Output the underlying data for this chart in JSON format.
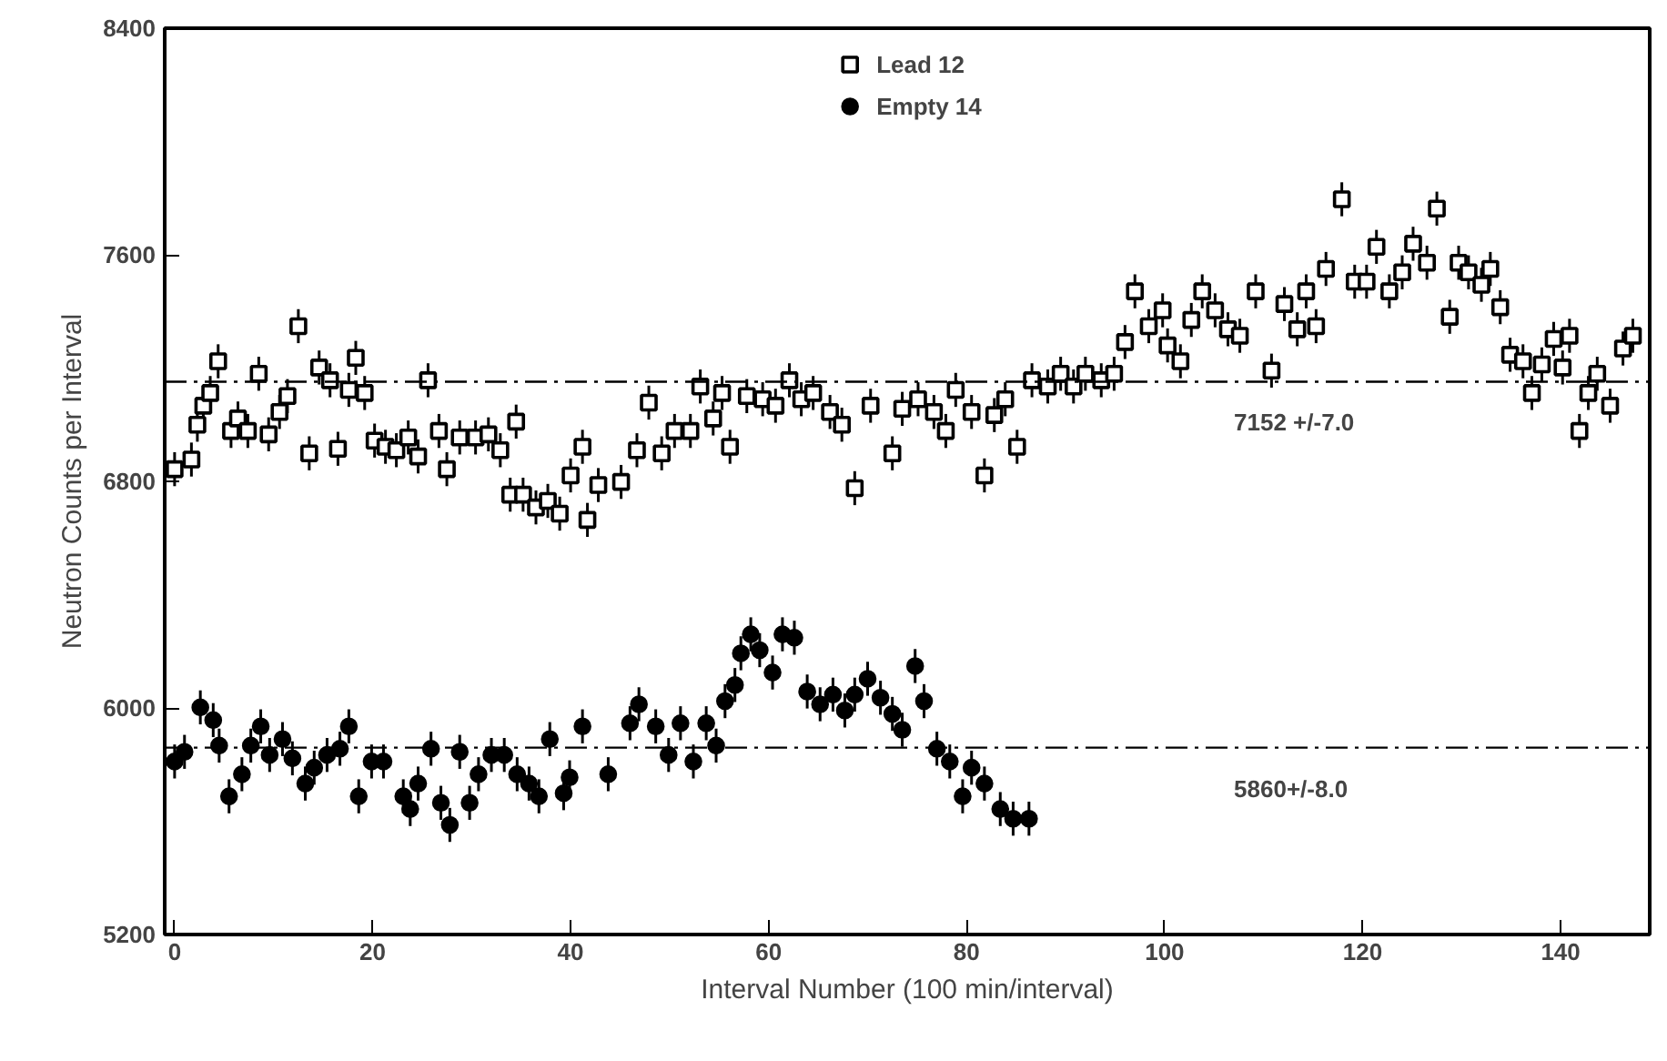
{
  "chart_data": {
    "type": "scatter",
    "xlabel": "Interval Number (100 min/interval)",
    "ylabel": "Neutron Counts per Interval",
    "xlim": [
      -1,
      149
    ],
    "ylim": [
      5200,
      8400
    ],
    "xticks": [
      0,
      20,
      40,
      60,
      80,
      100,
      120,
      140
    ],
    "yticks": [
      5200,
      6000,
      6800,
      7600,
      8400
    ],
    "grid": false,
    "legend": "top",
    "ref_lines": [
      {
        "axis": "y",
        "value": 7152,
        "label": "7152 +/-7.0",
        "line_style": "dashed"
      },
      {
        "axis": "y",
        "value": 5860,
        "label": "5860+/-8.0",
        "line_style": "dashed"
      }
    ],
    "series": [
      {
        "name": "Lead 12",
        "color": "#000000",
        "marker": "square",
        "x": [
          0,
          1.7,
          2.3,
          2.9,
          3.6,
          4.4,
          5.7,
          6.4,
          7.4,
          8.5,
          9.5,
          10.6,
          11.4,
          12.5,
          13.6,
          14.6,
          15.7,
          16.5,
          17.6,
          18.3,
          19.2,
          20.2,
          21.3,
          22.4,
          23.6,
          24.6,
          25.6,
          26.7,
          27.5,
          28.8,
          30.4,
          31.7,
          32.9,
          34.5,
          33.9,
          35.2,
          36.5,
          37.7,
          38.9,
          40.0,
          41.2,
          41.7,
          42.8,
          45.1,
          46.7,
          47.9,
          49.2,
          50.5,
          52.1,
          53.1,
          54.4,
          55.3,
          56.1,
          57.8,
          59.4,
          60.7,
          62.1,
          63.3,
          64.5,
          66.2,
          67.4,
          68.7,
          70.3,
          72.5,
          73.5,
          75.1,
          76.7,
          77.9,
          78.9,
          80.5,
          81.8,
          82.8,
          83.9,
          85.1,
          86.6,
          88.2,
          89.5,
          90.8,
          92.0,
          93.6,
          94.9,
          96.0,
          97.0,
          98.4,
          99.8,
          100.3,
          101.6,
          102.7,
          103.8,
          105.1,
          106.4,
          107.6,
          109.2,
          110.8,
          112.1,
          113.4,
          114.3,
          115.3,
          116.3,
          117.9,
          119.2,
          120.4,
          121.4,
          122.7,
          124.0,
          125.1,
          126.5,
          127.5,
          128.8,
          129.7,
          130.7,
          132.0,
          132.9,
          133.9,
          134.9,
          136.2,
          137.1,
          138.1,
          139.3,
          140.2,
          140.9,
          141.9,
          142.8,
          143.7,
          145.0,
          146.3,
          147.3
        ],
        "values": [
          6843,
          6877,
          7000,
          7067,
          7112,
          7224,
          6978,
          7022,
          6978,
          7180,
          6966,
          7045,
          7101,
          7348,
          6899,
          7202,
          7157,
          6915,
          7123,
          7236,
          7112,
          6944,
          6922,
          6910,
          6955,
          6888,
          7157,
          6978,
          6843,
          6955,
          6955,
          6966,
          6910,
          7011,
          6753,
          6753,
          6708,
          6731,
          6686,
          6821,
          6922,
          6664,
          6787,
          6798,
          6910,
          7078,
          6899,
          6978,
          6978,
          7135,
          7022,
          7112,
          6922,
          7101,
          7090,
          7067,
          7157,
          7090,
          7112,
          7045,
          7000,
          6776,
          7067,
          6899,
          7056,
          7090,
          7045,
          6978,
          7123,
          7045,
          6821,
          7034,
          7090,
          6922,
          7157,
          7135,
          7180,
          7135,
          7180,
          7157,
          7180,
          7292,
          7471,
          7348,
          7404,
          7280,
          7224,
          7370,
          7471,
          7404,
          7337,
          7314,
          7471,
          7191,
          7426,
          7337,
          7471,
          7348,
          7550,
          7796,
          7505,
          7505,
          7628,
          7471,
          7538,
          7639,
          7572,
          7763,
          7381,
          7572,
          7538,
          7494,
          7550,
          7415,
          7247,
          7224,
          7112,
          7213,
          7303,
          7202,
          7314,
          6978,
          7112,
          7180,
          7067,
          7269,
          7314
        ],
        "errors": [
          60,
          60,
          60,
          60,
          60,
          60,
          60,
          60,
          60,
          60,
          60,
          60,
          60,
          60,
          60,
          60,
          60,
          60,
          60,
          60,
          60,
          60,
          60,
          60,
          60,
          60,
          60,
          60,
          60,
          60,
          60,
          60,
          60,
          60,
          60,
          60,
          60,
          60,
          60,
          60,
          60,
          60,
          60,
          60,
          60,
          60,
          60,
          60,
          60,
          60,
          60,
          60,
          60,
          60,
          60,
          60,
          60,
          60,
          60,
          60,
          60,
          60,
          60,
          60,
          60,
          60,
          60,
          60,
          60,
          60,
          60,
          60,
          60,
          60,
          60,
          60,
          60,
          60,
          60,
          60,
          60,
          60,
          60,
          60,
          60,
          60,
          60,
          60,
          60,
          60,
          60,
          60,
          60,
          60,
          60,
          60,
          60,
          60,
          60,
          60,
          60,
          60,
          60,
          60,
          60,
          60,
          60,
          60,
          60,
          60,
          60,
          60,
          60,
          60,
          60,
          60,
          60,
          60,
          60,
          60,
          60,
          60,
          60,
          60,
          60,
          60,
          60
        ]
      },
      {
        "name": "Empty 14",
        "color": "#000000",
        "marker": "circle",
        "x": [
          0,
          1.0,
          2.6,
          3.9,
          4.5,
          5.5,
          6.8,
          7.7,
          8.7,
          9.6,
          10.9,
          11.9,
          13.2,
          14.1,
          15.4,
          16.7,
          17.6,
          18.6,
          19.9,
          21.1,
          23.1,
          23.8,
          24.6,
          25.9,
          26.9,
          27.8,
          28.8,
          29.8,
          30.7,
          32.0,
          33.3,
          34.6,
          35.8,
          36.8,
          37.9,
          39.3,
          39.9,
          41.2,
          43.8,
          46.0,
          46.9,
          48.6,
          49.9,
          51.1,
          52.4,
          53.7,
          54.7,
          55.6,
          56.6,
          57.2,
          58.2,
          59.1,
          60.4,
          61.4,
          62.6,
          63.9,
          65.2,
          66.5,
          67.7,
          68.7,
          70.0,
          71.3,
          72.5,
          73.5,
          74.8,
          75.7,
          77.0,
          78.3,
          79.6,
          80.5,
          81.8,
          83.4,
          84.7,
          86.3
        ],
        "values": [
          5811,
          5845,
          6002,
          5957,
          5867,
          5688,
          5766,
          5867,
          5935,
          5834,
          5890,
          5822,
          5733,
          5789,
          5834,
          5856,
          5935,
          5688,
          5811,
          5811,
          5688,
          5643,
          5733,
          5856,
          5665,
          5587,
          5845,
          5665,
          5766,
          5834,
          5834,
          5766,
          5733,
          5688,
          5890,
          5699,
          5755,
          5935,
          5766,
          5946,
          6013,
          5935,
          5834,
          5946,
          5811,
          5946,
          5867,
          6024,
          6081,
          6193,
          6260,
          6204,
          6125,
          6260,
          6248,
          6058,
          6013,
          6047,
          5991,
          6047,
          6103,
          6036,
          5979,
          5923,
          6148,
          6024,
          5856,
          5811,
          5688,
          5789,
          5733,
          5643,
          5609,
          5609
        ],
        "errors": [
          60,
          60,
          60,
          60,
          60,
          60,
          60,
          60,
          60,
          60,
          60,
          60,
          60,
          60,
          60,
          60,
          60,
          60,
          60,
          60,
          60,
          60,
          60,
          60,
          60,
          60,
          60,
          60,
          60,
          60,
          60,
          60,
          60,
          60,
          60,
          60,
          60,
          60,
          60,
          60,
          60,
          60,
          60,
          60,
          60,
          60,
          60,
          60,
          60,
          60,
          60,
          60,
          60,
          60,
          60,
          60,
          60,
          60,
          60,
          60,
          60,
          60,
          60,
          60,
          60,
          60,
          60,
          60,
          60,
          60,
          60,
          60,
          60,
          60
        ]
      }
    ]
  }
}
